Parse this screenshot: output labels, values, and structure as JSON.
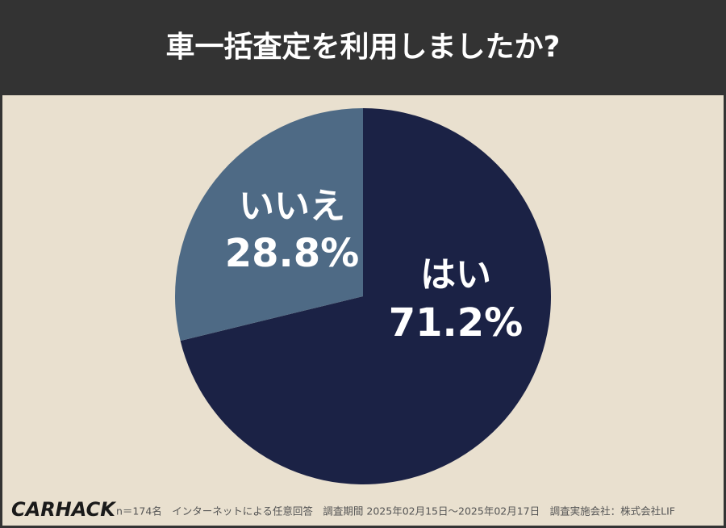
{
  "chart_data": {
    "type": "pie",
    "title": "車一括査定を利用しましたか?",
    "categories": [
      "はい",
      "いいえ"
    ],
    "values": [
      71.2,
      28.8
    ],
    "value_labels": [
      "71.2%",
      "28.8%"
    ],
    "colors": [
      "#1b2245",
      "#4e6a85"
    ]
  },
  "footer": {
    "logo": "CARHACK",
    "note": "n＝174名　インターネットによる任意回答　調査期間 2025年02月15日～2025年02月17日　調査実施会社：株式会社LIF"
  }
}
